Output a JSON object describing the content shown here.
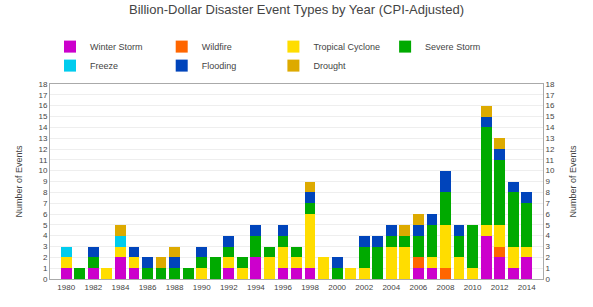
{
  "chart_data": {
    "type": "bar",
    "title": "Billion-Dollar Disaster Event Types by Year (CPI-Adjusted)",
    "ylabel": "Number of Events",
    "y2label": "Number of Events",
    "x": [
      1980,
      1981,
      1982,
      1983,
      1984,
      1985,
      1986,
      1987,
      1988,
      1989,
      1990,
      1991,
      1992,
      1993,
      1994,
      1995,
      1996,
      1997,
      1998,
      1999,
      2000,
      2001,
      2002,
      2003,
      2004,
      2005,
      2006,
      2007,
      2008,
      2009,
      2010,
      2011,
      2012,
      2013,
      2014
    ],
    "series": [
      {
        "name": "Winter Storm",
        "color": "#cc00cc",
        "values": [
          1,
          0,
          1,
          0,
          2,
          1,
          0,
          0,
          0,
          0,
          0,
          0,
          1,
          0,
          2,
          0,
          1,
          1,
          1,
          0,
          0,
          0,
          0,
          0,
          0,
          0,
          1,
          1,
          0,
          0,
          0,
          4,
          2,
          1,
          2
        ]
      },
      {
        "name": "Wildfire",
        "color": "#ff6600",
        "values": [
          0,
          0,
          0,
          0,
          0,
          0,
          0,
          0,
          0,
          0,
          0,
          0,
          0,
          0,
          0,
          0,
          0,
          0,
          0,
          0,
          0,
          0,
          0,
          0,
          0,
          0,
          1,
          0,
          1,
          0,
          0,
          0,
          1,
          0,
          0
        ]
      },
      {
        "name": "Tropical Cyclone",
        "color": "#ffdd00",
        "values": [
          1,
          0,
          0,
          1,
          1,
          1,
          0,
          0,
          0,
          0,
          1,
          0,
          1,
          1,
          0,
          2,
          2,
          1,
          5,
          2,
          0,
          1,
          1,
          0,
          3,
          3,
          0,
          1,
          4,
          2,
          1,
          1,
          2,
          2,
          1
        ]
      },
      {
        "name": "Severe Storm",
        "color": "#00aa00",
        "values": [
          0,
          1,
          1,
          0,
          0,
          0,
          1,
          1,
          1,
          1,
          1,
          2,
          1,
          1,
          2,
          1,
          1,
          1,
          1,
          0,
          1,
          0,
          2,
          3,
          1,
          1,
          2,
          3,
          3,
          2,
          4,
          9,
          6,
          5,
          4
        ]
      },
      {
        "name": "Freeze",
        "color": "#00ccee",
        "values": [
          1,
          0,
          0,
          0,
          1,
          0,
          0,
          0,
          0,
          0,
          0,
          0,
          0,
          0,
          0,
          0,
          0,
          0,
          0,
          0,
          0,
          0,
          0,
          0,
          0,
          0,
          0,
          0,
          0,
          0,
          0,
          0,
          0,
          0,
          0
        ]
      },
      {
        "name": "Flooding",
        "color": "#0044bb",
        "values": [
          0,
          0,
          1,
          0,
          0,
          1,
          1,
          0,
          1,
          0,
          1,
          0,
          1,
          0,
          1,
          0,
          1,
          0,
          1,
          0,
          1,
          0,
          1,
          1,
          1,
          0,
          1,
          1,
          2,
          1,
          0,
          1,
          1,
          1,
          1
        ]
      },
      {
        "name": "Drought",
        "color": "#ddaa00",
        "values": [
          0,
          0,
          0,
          0,
          1,
          0,
          0,
          1,
          1,
          0,
          0,
          0,
          0,
          0,
          0,
          0,
          0,
          0,
          1,
          0,
          0,
          0,
          0,
          0,
          0,
          1,
          1,
          0,
          0,
          0,
          0,
          1,
          1,
          0,
          0
        ]
      }
    ],
    "stacked": true,
    "xlim": [
      1978.8,
      2015.2
    ],
    "xticks": [
      1980,
      1982,
      1984,
      1986,
      1988,
      1990,
      1992,
      1994,
      1996,
      1998,
      2000,
      2002,
      2004,
      2006,
      2008,
      2010,
      2012,
      2014
    ],
    "ylim": [
      0,
      18
    ],
    "yticks": [
      0,
      1,
      2,
      3,
      4,
      5,
      6,
      7,
      8,
      9,
      10,
      11,
      12,
      13,
      14,
      15,
      16,
      17,
      18
    ],
    "y2lim": [
      0,
      18
    ],
    "y2ticks": [
      0,
      1,
      2,
      3,
      4,
      5,
      6,
      7,
      8,
      9,
      10,
      11,
      12,
      13,
      14,
      15,
      16,
      17,
      18
    ],
    "grid": true,
    "legend": "upper left"
  }
}
